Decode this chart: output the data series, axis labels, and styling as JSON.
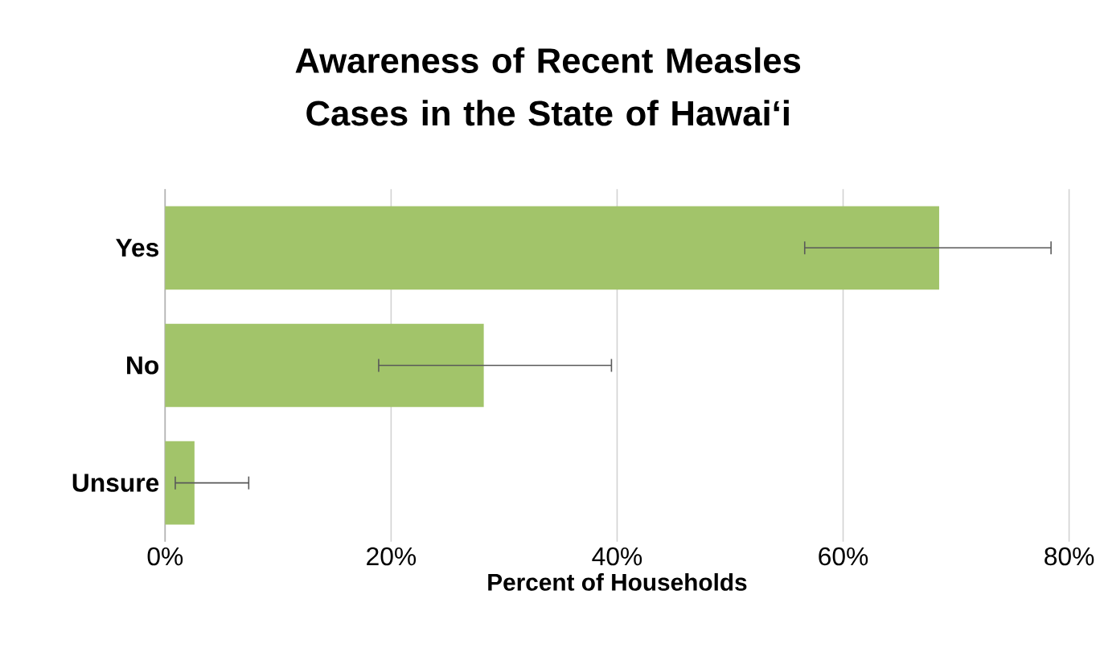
{
  "chart_data": {
    "type": "bar",
    "orientation": "horizontal",
    "title": "Awareness of Recent Measles Cases in the State of Hawai‘i",
    "xlabel": "Percent of Households",
    "categories": [
      "Yes",
      "No",
      "Unsure"
    ],
    "values": [
      68.5,
      28.2,
      2.6
    ],
    "errors": [
      [
        56.6,
        78.4
      ],
      [
        18.9,
        39.5
      ],
      [
        0.9,
        7.4
      ]
    ],
    "color": "#a2c46a",
    "xlim": [
      0,
      80
    ],
    "xticks": [
      {
        "value": 0,
        "label": "0%"
      },
      {
        "value": 20,
        "label": "20%"
      },
      {
        "value": 40,
        "label": "40%"
      },
      {
        "value": 60,
        "label": "60%"
      },
      {
        "value": 80,
        "label": "80%"
      }
    ],
    "grid": "x"
  }
}
